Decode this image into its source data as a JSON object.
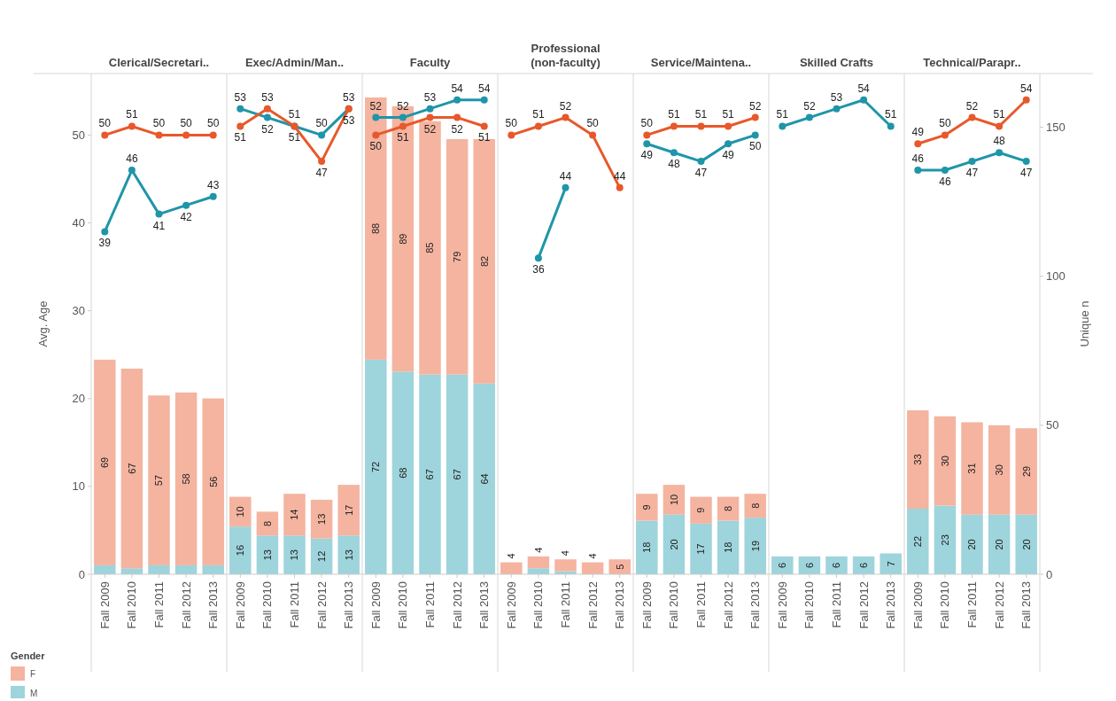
{
  "chart_data": {
    "type": "bar",
    "annotations": [
      "Clerical/Secretari..",
      "Exec/Admin/Man..",
      "Faculty",
      "Professional (non-faculty)",
      "Service/Maintena..",
      "Skilled Crafts",
      "Technical/Parapr.."
    ],
    "categories": [
      "Fall 2009",
      "Fall 2010",
      "Fall 2011",
      "Fall 2012",
      "Fall 2013",
      "Fall 2009",
      "Fall 2010",
      "Fall 2011",
      "Fall 2012",
      "Fall 2013",
      "Fall 2009",
      "Fall 2010",
      "Fall 2011",
      "Fall 2012",
      "Fall 2013",
      "Fall 2009",
      "Fall 2010",
      "Fall 2011",
      "Fall 2012",
      "Fall 2013",
      "Fall 2009",
      "Fall 2010",
      "Fall 2011",
      "Fall 2012",
      "Fall 2013",
      "Fall 2009",
      "Fall 2010",
      "Fall 2011",
      "Fall 2012",
      "Fall 2013",
      "Fall 2009",
      "Fall 2010",
      "Fall 2011",
      "Fall 2012",
      "Fall 2013"
    ],
    "stacked": true,
    "ylim": [
      0,
      57
    ],
    "yticks": [
      0,
      10,
      20,
      30,
      40,
      50
    ],
    "y2lim": [
      0,
      168
    ],
    "y2ticks": [
      0,
      50,
      100,
      150
    ],
    "ylabel": "Avg. Age",
    "y2label": "Unique n",
    "marker": "circle",
    "line_style": "solid",
    "legend": "bottom left",
    "legend_title": "Gender",
    "series": [
      {
        "axis": "y2",
        "name": "M",
        "color": "#9ed4dc",
        "values": [
          3,
          2,
          3,
          3,
          3,
          16,
          13,
          13,
          12,
          13,
          72,
          68,
          67,
          67,
          64,
          null,
          2,
          1,
          null,
          null,
          18,
          20,
          17,
          18,
          19,
          6,
          6,
          6,
          6,
          7,
          22,
          23,
          20,
          20,
          20
        ],
        "value_labels": [
          null,
          null,
          null,
          null,
          null,
          "16",
          "13",
          "13",
          "12",
          "13",
          "72",
          "68",
          "67",
          "67",
          "64",
          null,
          null,
          null,
          null,
          null,
          "18",
          "20",
          "17",
          "18",
          "19",
          "6",
          "6",
          "6",
          "6",
          "7",
          "22",
          "23",
          "20",
          "20",
          "20"
        ]
      },
      {
        "axis": "y2",
        "name": "F",
        "color": "#f4b4a0",
        "values": [
          69,
          67,
          57,
          58,
          56,
          10,
          8,
          14,
          13,
          17,
          88,
          89,
          85,
          79,
          82,
          4,
          4,
          4,
          4,
          5,
          9,
          10,
          9,
          8,
          8,
          null,
          null,
          null,
          null,
          null,
          33,
          30,
          31,
          30,
          29
        ],
        "value_labels": [
          "69",
          "67",
          "57",
          "58",
          "56",
          "10",
          "8",
          "14",
          "13",
          "17",
          "88",
          "89",
          "85",
          "79",
          "82",
          "4",
          "4",
          "4",
          "4",
          "5",
          "9",
          "10",
          "9",
          "8",
          "8",
          null,
          null,
          null,
          null,
          null,
          "33",
          "30",
          "31",
          "30",
          "29"
        ]
      },
      {
        "type": "line",
        "color": "#1f95a8",
        "values": [
          39,
          46,
          41,
          42,
          43,
          null,
          null,
          null,
          null,
          null,
          null,
          null,
          null,
          null,
          null,
          null,
          null,
          null,
          null,
          null,
          null,
          null,
          null,
          null,
          null,
          null,
          null,
          null,
          null,
          null,
          null,
          null,
          null,
          null,
          null
        ],
        "value_labels": [
          "39",
          "46",
          "41",
          "42",
          "43",
          null,
          null,
          null,
          null,
          null,
          null,
          null,
          null,
          null,
          null,
          null,
          null,
          null,
          null,
          null,
          null,
          null,
          null,
          null,
          null,
          null,
          null,
          null,
          null,
          null,
          null,
          null,
          null,
          null,
          null
        ]
      },
      {
        "type": "line",
        "color": "#e8582a",
        "values": [
          50,
          51,
          50,
          50,
          50,
          null,
          null,
          null,
          null,
          null,
          null,
          null,
          null,
          null,
          null,
          null,
          null,
          null,
          null,
          null,
          null,
          null,
          null,
          null,
          null,
          null,
          null,
          null,
          null,
          null,
          null,
          null,
          null,
          null,
          null
        ],
        "value_labels": [
          "50",
          "51",
          "50",
          "50",
          "50",
          null,
          null,
          null,
          null,
          null,
          null,
          null,
          null,
          null,
          null,
          null,
          null,
          null,
          null,
          null,
          null,
          null,
          null,
          null,
          null,
          null,
          null,
          null,
          null,
          null,
          null,
          null,
          null,
          null,
          null
        ]
      },
      {
        "type": "line",
        "color": "#1f95a8",
        "values": [
          null,
          null,
          null,
          null,
          null,
          53,
          52,
          51,
          50,
          53,
          null,
          null,
          null,
          null,
          null,
          null,
          null,
          null,
          null,
          null,
          null,
          null,
          null,
          null,
          null,
          null,
          null,
          null,
          null,
          null,
          null,
          null,
          null,
          null,
          null
        ],
        "value_labels": [
          null,
          null,
          null,
          null,
          null,
          "53",
          "52",
          "51",
          "50",
          "53",
          null,
          null,
          null,
          null,
          null,
          null,
          null,
          null,
          null,
          null,
          null,
          null,
          null,
          null,
          null,
          null,
          null,
          null,
          null,
          null,
          null,
          null,
          null,
          null,
          null
        ]
      },
      {
        "type": "line",
        "color": "#e8582a",
        "values": [
          null,
          null,
          null,
          null,
          null,
          51,
          53,
          51,
          47,
          53,
          null,
          null,
          null,
          null,
          null,
          null,
          null,
          null,
          null,
          null,
          null,
          null,
          null,
          null,
          null,
          null,
          null,
          null,
          null,
          null,
          null,
          null,
          null,
          null,
          null
        ],
        "value_labels": [
          null,
          null,
          null,
          null,
          null,
          "51",
          "53",
          "51",
          "47",
          "53",
          null,
          null,
          null,
          null,
          null,
          null,
          null,
          null,
          null,
          null,
          null,
          null,
          null,
          null,
          null,
          null,
          null,
          null,
          null,
          null,
          null,
          null,
          null,
          null,
          null
        ]
      },
      {
        "type": "line",
        "color": "#1f95a8",
        "values": [
          null,
          null,
          null,
          null,
          null,
          null,
          null,
          null,
          null,
          null,
          52,
          52,
          53,
          54,
          54,
          null,
          null,
          null,
          null,
          null,
          null,
          null,
          null,
          null,
          null,
          null,
          null,
          null,
          null,
          null,
          null,
          null,
          null,
          null,
          null
        ],
        "value_labels": [
          null,
          null,
          null,
          null,
          null,
          null,
          null,
          null,
          null,
          null,
          "52",
          "52",
          "53",
          "54",
          "54",
          null,
          null,
          null,
          null,
          null,
          null,
          null,
          null,
          null,
          null,
          null,
          null,
          null,
          null,
          null,
          null,
          null,
          null,
          null,
          null
        ]
      },
      {
        "type": "line",
        "color": "#e8582a",
        "values": [
          null,
          null,
          null,
          null,
          null,
          null,
          null,
          null,
          null,
          null,
          50,
          51,
          52,
          52,
          51,
          null,
          null,
          null,
          null,
          null,
          null,
          null,
          null,
          null,
          null,
          null,
          null,
          null,
          null,
          null,
          null,
          null,
          null,
          null,
          null
        ],
        "value_labels": [
          null,
          null,
          null,
          null,
          null,
          null,
          null,
          null,
          null,
          null,
          "50",
          "51",
          "52",
          "52",
          "51",
          null,
          null,
          null,
          null,
          null,
          null,
          null,
          null,
          null,
          null,
          null,
          null,
          null,
          null,
          null,
          null,
          null,
          null,
          null,
          null
        ]
      },
      {
        "type": "line",
        "color": "#1f95a8",
        "values": [
          null,
          null,
          null,
          null,
          null,
          null,
          null,
          null,
          null,
          null,
          null,
          null,
          null,
          null,
          null,
          null,
          36,
          44,
          null,
          null,
          null,
          null,
          null,
          null,
          null,
          null,
          null,
          null,
          null,
          null,
          null,
          null,
          null,
          null,
          null
        ],
        "value_labels": [
          null,
          null,
          null,
          null,
          null,
          null,
          null,
          null,
          null,
          null,
          null,
          null,
          null,
          null,
          null,
          null,
          "36",
          "44",
          null,
          null,
          null,
          null,
          null,
          null,
          null,
          null,
          null,
          null,
          null,
          null,
          null,
          null,
          null,
          null,
          null
        ]
      },
      {
        "type": "line",
        "color": "#e8582a",
        "values": [
          null,
          null,
          null,
          null,
          null,
          null,
          null,
          null,
          null,
          null,
          null,
          null,
          null,
          null,
          null,
          50,
          51,
          52,
          50,
          44,
          null,
          null,
          null,
          null,
          null,
          null,
          null,
          null,
          null,
          null,
          null,
          null,
          null,
          null,
          null
        ],
        "value_labels": [
          null,
          null,
          null,
          null,
          null,
          null,
          null,
          null,
          null,
          null,
          null,
          null,
          null,
          null,
          null,
          "50",
          "51",
          "52",
          "50",
          "44",
          null,
          null,
          null,
          null,
          null,
          null,
          null,
          null,
          null,
          null,
          null,
          null,
          null,
          null,
          null
        ]
      },
      {
        "type": "line",
        "color": "#1f95a8",
        "values": [
          null,
          null,
          null,
          null,
          null,
          null,
          null,
          null,
          null,
          null,
          null,
          null,
          null,
          null,
          null,
          null,
          null,
          null,
          null,
          null,
          49,
          48,
          47,
          49,
          50,
          null,
          null,
          null,
          null,
          null,
          null,
          null,
          null,
          null,
          null
        ],
        "value_labels": [
          null,
          null,
          null,
          null,
          null,
          null,
          null,
          null,
          null,
          null,
          null,
          null,
          null,
          null,
          null,
          null,
          null,
          null,
          null,
          null,
          "49",
          "48",
          "47",
          "49",
          "50",
          null,
          null,
          null,
          null,
          null,
          null,
          null,
          null,
          null,
          null
        ]
      },
      {
        "type": "line",
        "color": "#e8582a",
        "values": [
          null,
          null,
          null,
          null,
          null,
          null,
          null,
          null,
          null,
          null,
          null,
          null,
          null,
          null,
          null,
          null,
          null,
          null,
          null,
          null,
          50,
          51,
          51,
          51,
          52,
          null,
          null,
          null,
          null,
          null,
          null,
          null,
          null,
          null,
          null
        ],
        "value_labels": [
          null,
          null,
          null,
          null,
          null,
          null,
          null,
          null,
          null,
          null,
          null,
          null,
          null,
          null,
          null,
          null,
          null,
          null,
          null,
          null,
          "50",
          "51",
          "51",
          "51",
          "52",
          null,
          null,
          null,
          null,
          null,
          null,
          null,
          null,
          null,
          null
        ]
      },
      {
        "type": "line",
        "color": "#1f95a8",
        "values": [
          null,
          null,
          null,
          null,
          null,
          null,
          null,
          null,
          null,
          null,
          null,
          null,
          null,
          null,
          null,
          null,
          null,
          null,
          null,
          null,
          null,
          null,
          null,
          null,
          null,
          51,
          52,
          53,
          54,
          51,
          null,
          null,
          null,
          null,
          null
        ],
        "value_labels": [
          null,
          null,
          null,
          null,
          null,
          null,
          null,
          null,
          null,
          null,
          null,
          null,
          null,
          null,
          null,
          null,
          null,
          null,
          null,
          null,
          null,
          null,
          null,
          null,
          null,
          "51",
          "52",
          "53",
          "54",
          "51",
          null,
          null,
          null,
          null,
          null
        ]
      },
      {
        "type": "line",
        "color": "#1f95a8",
        "values": [
          null,
          null,
          null,
          null,
          null,
          null,
          null,
          null,
          null,
          null,
          null,
          null,
          null,
          null,
          null,
          null,
          null,
          null,
          null,
          null,
          null,
          null,
          null,
          null,
          null,
          null,
          null,
          null,
          null,
          null,
          46,
          46,
          47,
          48,
          47
        ],
        "value_labels": [
          null,
          null,
          null,
          null,
          null,
          null,
          null,
          null,
          null,
          null,
          null,
          null,
          null,
          null,
          null,
          null,
          null,
          null,
          null,
          null,
          null,
          null,
          null,
          null,
          null,
          null,
          null,
          null,
          null,
          null,
          "46",
          "46",
          "47",
          "48",
          "47"
        ]
      },
      {
        "type": "line",
        "color": "#e8582a",
        "values": [
          null,
          null,
          null,
          null,
          null,
          null,
          null,
          null,
          null,
          null,
          null,
          null,
          null,
          null,
          null,
          null,
          null,
          null,
          null,
          null,
          null,
          null,
          null,
          null,
          null,
          null,
          null,
          null,
          null,
          null,
          49,
          50,
          52,
          51,
          54
        ],
        "value_labels": [
          null,
          null,
          null,
          null,
          null,
          null,
          null,
          null,
          null,
          null,
          null,
          null,
          null,
          null,
          null,
          null,
          null,
          null,
          null,
          null,
          null,
          null,
          null,
          null,
          null,
          null,
          null,
          null,
          null,
          null,
          "49",
          "50",
          "52",
          "51",
          "54"
        ]
      }
    ]
  }
}
